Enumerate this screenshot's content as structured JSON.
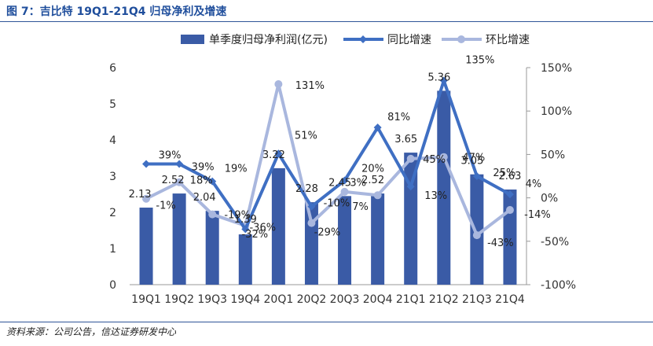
{
  "figure_title": "图 7：吉比特 19Q1-21Q4 归母净利及增速",
  "source": "资料来源：公司公告，信达证券研发中心",
  "colors": {
    "bar": "#3a5ba6",
    "yoy": "#3f6fc3",
    "qoq": "#a9b7de",
    "axis": "#333333",
    "title": "#1f4e9c"
  },
  "chart_data": {
    "type": "bar",
    "categories": [
      "19Q1",
      "19Q2",
      "19Q3",
      "19Q4",
      "20Q1",
      "20Q2",
      "20Q3",
      "20Q4",
      "21Q1",
      "21Q2",
      "21Q3",
      "21Q4"
    ],
    "series": [
      {
        "name": "单季度归母净利润(亿元)",
        "type": "bar",
        "axis": "left",
        "values": [
          2.13,
          2.52,
          2.04,
          1.39,
          3.22,
          2.28,
          2.45,
          2.52,
          3.65,
          5.36,
          3.05,
          2.63
        ],
        "labels": [
          "2.13",
          "2.52",
          "2.04",
          "1.39",
          "3.22",
          "2.28",
          "2.45",
          "2.52",
          "3.65",
          "5.36",
          "3.05",
          "2.63"
        ]
      },
      {
        "name": "同比增速",
        "type": "line",
        "axis": "right",
        "values": [
          39,
          39,
          19,
          -36,
          51,
          -10,
          20,
          81,
          13,
          135,
          25,
          4
        ],
        "labels": [
          "39%",
          "39%",
          "19%",
          "-36%",
          "51%",
          "-10%",
          "20%",
          "81%",
          "13%",
          "135%",
          "25%",
          "4%"
        ]
      },
      {
        "name": "环比增速",
        "type": "line",
        "axis": "right",
        "values": [
          -1,
          18,
          -19,
          -32,
          131,
          -29,
          7,
          3,
          45,
          47,
          -43,
          -14
        ],
        "labels": [
          "-1%",
          "18%",
          "-19%",
          "-32%",
          "131%",
          "-29%",
          "7%",
          "3%",
          "45%",
          "47%",
          "-43%",
          "-14%"
        ]
      }
    ],
    "y_left": {
      "ylim": [
        0,
        6
      ],
      "ticks": [
        "0",
        "1",
        "2",
        "3",
        "4",
        "5",
        "6"
      ]
    },
    "y_right": {
      "ylim": [
        -100,
        150
      ],
      "ticks": [
        "-100%",
        "-50%",
        "0%",
        "50%",
        "100%",
        "150%"
      ]
    },
    "legend": "top"
  }
}
